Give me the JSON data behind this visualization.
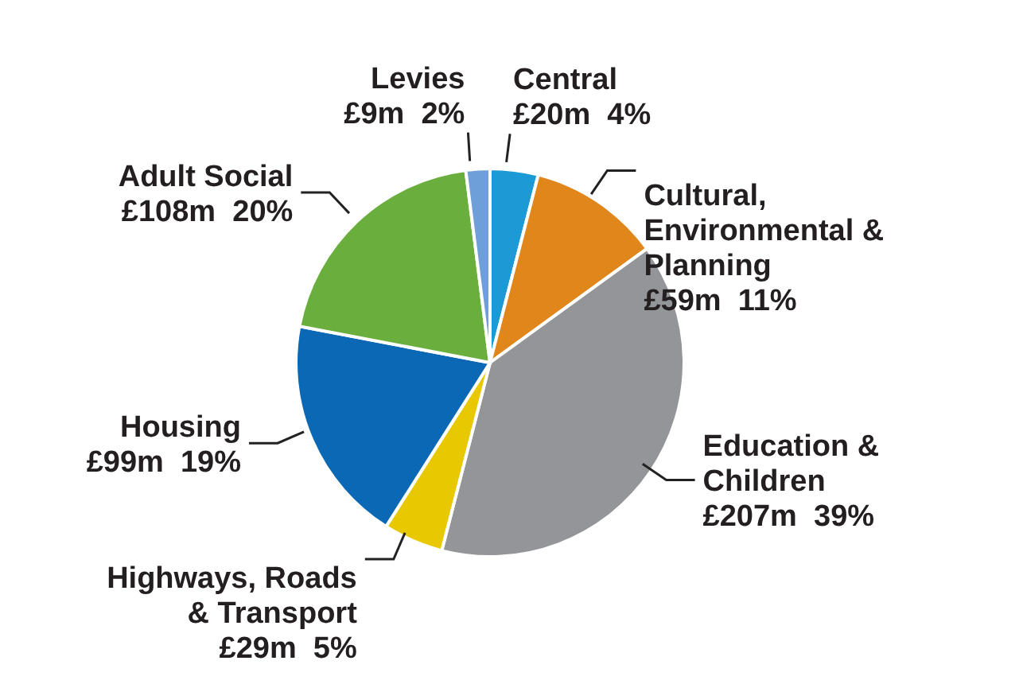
{
  "chart_data": {
    "type": "pie",
    "categories": [
      "Central",
      "Cultural,\nEnvironmental &\nPlanning",
      "Education &\nChildren",
      "Highways, Roads\n& Transport",
      "Housing",
      "Adult Social",
      "Levies"
    ],
    "values": [
      4,
      11,
      39,
      5,
      19,
      20,
      2
    ],
    "value_labels": [
      "£20m  4%",
      "£59m  11%",
      "£207m  39%",
      "£29m  5%",
      "£99m  19%",
      "£108m  20%",
      "£9m  2%"
    ],
    "colors": [
      "#1b9ad6",
      "#e0861a",
      "#939598",
      "#e8c800",
      "#0a68b5",
      "#6aaf3d",
      "#6f9fd8"
    ]
  }
}
